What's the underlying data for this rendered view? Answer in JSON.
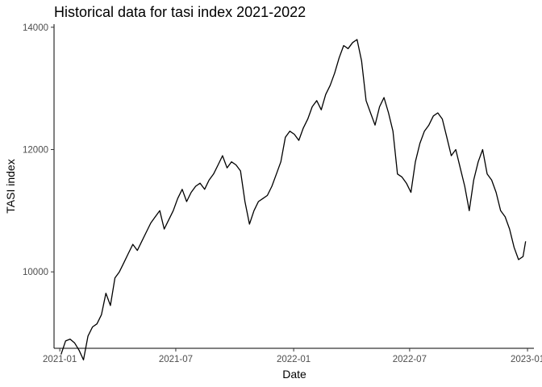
{
  "chart_data": {
    "type": "line",
    "title": "Historical data for tasi index 2021-2022",
    "xlabel": "Date",
    "ylabel": "TASI index",
    "xlim": [
      "2020-12-23",
      "2023-01-11"
    ],
    "ylim": [
      8750,
      14050
    ],
    "x_ticks": [
      "2021-01",
      "2021-07",
      "2022-01",
      "2022-07",
      "2023-01"
    ],
    "y_ticks": [
      10000,
      12000,
      14000
    ],
    "grid": false,
    "legend": "none",
    "line_color": "#000000",
    "series": [
      {
        "x": [
          "2021-01-03",
          "2021-01-10",
          "2021-01-17",
          "2021-01-24",
          "2021-01-31",
          "2021-02-07",
          "2021-02-14",
          "2021-02-21",
          "2021-02-28",
          "2021-03-07",
          "2021-03-14",
          "2021-03-21",
          "2021-03-28",
          "2021-04-04",
          "2021-04-11",
          "2021-04-18",
          "2021-04-25",
          "2021-05-02",
          "2021-05-09",
          "2021-05-16",
          "2021-05-23",
          "2021-05-30",
          "2021-06-06",
          "2021-06-13",
          "2021-06-20",
          "2021-06-27",
          "2021-07-04",
          "2021-07-11",
          "2021-07-18",
          "2021-07-25",
          "2021-08-01",
          "2021-08-08",
          "2021-08-15",
          "2021-08-22",
          "2021-08-29",
          "2021-09-05",
          "2021-09-12",
          "2021-09-19",
          "2021-09-26",
          "2021-10-03",
          "2021-10-10",
          "2021-10-17",
          "2021-10-24",
          "2021-10-31",
          "2021-11-07",
          "2021-11-14",
          "2021-11-21",
          "2021-11-28",
          "2021-12-05",
          "2021-12-12",
          "2021-12-19",
          "2021-12-26",
          "2022-01-02",
          "2022-01-09",
          "2022-01-16",
          "2022-01-23",
          "2022-01-30",
          "2022-02-06",
          "2022-02-13",
          "2022-02-20",
          "2022-02-27",
          "2022-03-06",
          "2022-03-13",
          "2022-03-20",
          "2022-03-27",
          "2022-04-03",
          "2022-04-10",
          "2022-04-17",
          "2022-04-24",
          "2022-05-01",
          "2022-05-08",
          "2022-05-15",
          "2022-05-22",
          "2022-05-29",
          "2022-06-05",
          "2022-06-12",
          "2022-06-19",
          "2022-06-26",
          "2022-07-03",
          "2022-07-10",
          "2022-07-17",
          "2022-07-24",
          "2022-07-31",
          "2022-08-07",
          "2022-08-14",
          "2022-08-21",
          "2022-08-28",
          "2022-09-04",
          "2022-09-11",
          "2022-09-18",
          "2022-09-25",
          "2022-10-02",
          "2022-10-09",
          "2022-10-16",
          "2022-10-23",
          "2022-10-30",
          "2022-11-06",
          "2022-11-13",
          "2022-11-20",
          "2022-11-27",
          "2022-12-04",
          "2022-12-11",
          "2022-12-18",
          "2022-12-25",
          "2022-12-29"
        ],
        "y": [
          8650,
          8870,
          8900,
          8840,
          8720,
          8560,
          8950,
          9100,
          9150,
          9300,
          9650,
          9450,
          9900,
          10000,
          10150,
          10300,
          10450,
          10350,
          10500,
          10650,
          10800,
          10900,
          11000,
          10700,
          10850,
          11000,
          11200,
          11350,
          11150,
          11300,
          11400,
          11450,
          11350,
          11500,
          11600,
          11750,
          11900,
          11700,
          11800,
          11750,
          11650,
          11150,
          10780,
          11000,
          11150,
          11200,
          11250,
          11400,
          11600,
          11800,
          12200,
          12300,
          12250,
          12150,
          12350,
          12500,
          12700,
          12800,
          12650,
          12900,
          13050,
          13250,
          13500,
          13700,
          13650,
          13750,
          13800,
          13450,
          12800,
          12600,
          12400,
          12700,
          12850,
          12600,
          12300,
          11600,
          11550,
          11450,
          11300,
          11800,
          12100,
          12300,
          12400,
          12550,
          12600,
          12500,
          12200,
          11900,
          12000,
          11700,
          11400,
          11000,
          11500,
          11800,
          12000,
          11600,
          11500,
          11300,
          11000,
          10900,
          10700,
          10400,
          10200,
          10250,
          10500
        ]
      }
    ]
  }
}
